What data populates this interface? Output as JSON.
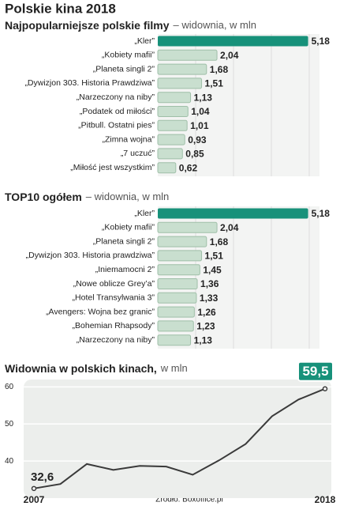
{
  "title": "Polskie kina 2018",
  "source": "Źródło: Boxoffice.pl",
  "chart_data": [
    {
      "type": "bar",
      "orientation": "horizontal",
      "title": "Najpopularniejsze polskie filmy",
      "subtitle": "– widownia, w mln",
      "categories": [
        "„Kler”",
        "„Kobiety mafii”",
        "„Planeta singli 2”",
        "„Dywizjon 303. Historia Prawdziwa”",
        "„Narzeczony na niby”",
        "„Podatek od miłości”",
        "„Pitbull. Ostatni pies”",
        "„Zimna wojna”",
        "„7 uczuć”",
        "„Miłość jest wszystkim”"
      ],
      "values": [
        5.18,
        2.04,
        1.68,
        1.51,
        1.13,
        1.04,
        1.01,
        0.93,
        0.85,
        0.62
      ],
      "value_labels": [
        "5,18",
        "2,04",
        "1,68",
        "1,51",
        "1,13",
        "1,04",
        "1,01",
        "0,93",
        "0,85",
        "0,62"
      ],
      "colors": [
        "#17917a",
        "#c9dfcf",
        "#c9dfcf",
        "#c9dfcf",
        "#c9dfcf",
        "#c9dfcf",
        "#c9dfcf",
        "#c9dfcf",
        "#c9dfcf",
        "#c9dfcf"
      ],
      "xlim": [
        0,
        5.3
      ]
    },
    {
      "type": "bar",
      "orientation": "horizontal",
      "title": "TOP10 ogółem",
      "subtitle": "– widownia, w mln",
      "categories": [
        "„Kler”",
        "„Kobiety mafii”",
        "„Planeta singli 2”",
        "„Dywizjon 303. Historia prawdziwa”",
        "„Iniemamocni 2”",
        "„Nowe oblicze Grey’a”",
        "„Hotel Transylwania 3”",
        "„Avengers: Wojna bez granic”",
        "„Bohemian Rhapsody”",
        "„Narzeczony na niby”"
      ],
      "values": [
        5.18,
        2.04,
        1.68,
        1.51,
        1.45,
        1.36,
        1.33,
        1.26,
        1.23,
        1.13
      ],
      "value_labels": [
        "5,18",
        "2,04",
        "1,68",
        "1,51",
        "1,45",
        "1,36",
        "1,33",
        "1,26",
        "1,23",
        "1,13"
      ],
      "colors": [
        "#17917a",
        "#c9dfcf",
        "#c9dfcf",
        "#c9dfcf",
        "#c9dfcf",
        "#c9dfcf",
        "#c9dfcf",
        "#c9dfcf",
        "#c9dfcf",
        "#c9dfcf"
      ],
      "xlim": [
        0,
        5.3
      ]
    },
    {
      "type": "line",
      "title": "Widownia w polskich kinach,",
      "subtitle": "w mln",
      "categories": [
        "2007",
        null,
        null,
        null,
        null,
        null,
        null,
        null,
        null,
        null,
        null,
        "2018"
      ],
      "values": [
        32.6,
        33.8,
        39.2,
        37.6,
        38.7,
        38.5,
        36.3,
        40.2,
        44.6,
        52.1,
        56.6,
        59.5
      ],
      "value_labels": [
        "32,6",
        null,
        null,
        null,
        null,
        null,
        null,
        null,
        null,
        null,
        null,
        "59,5"
      ],
      "color": "#3a3a3a",
      "ylim": [
        30,
        62
      ],
      "yticks": [
        40,
        50,
        60
      ],
      "grid": true
    }
  ]
}
